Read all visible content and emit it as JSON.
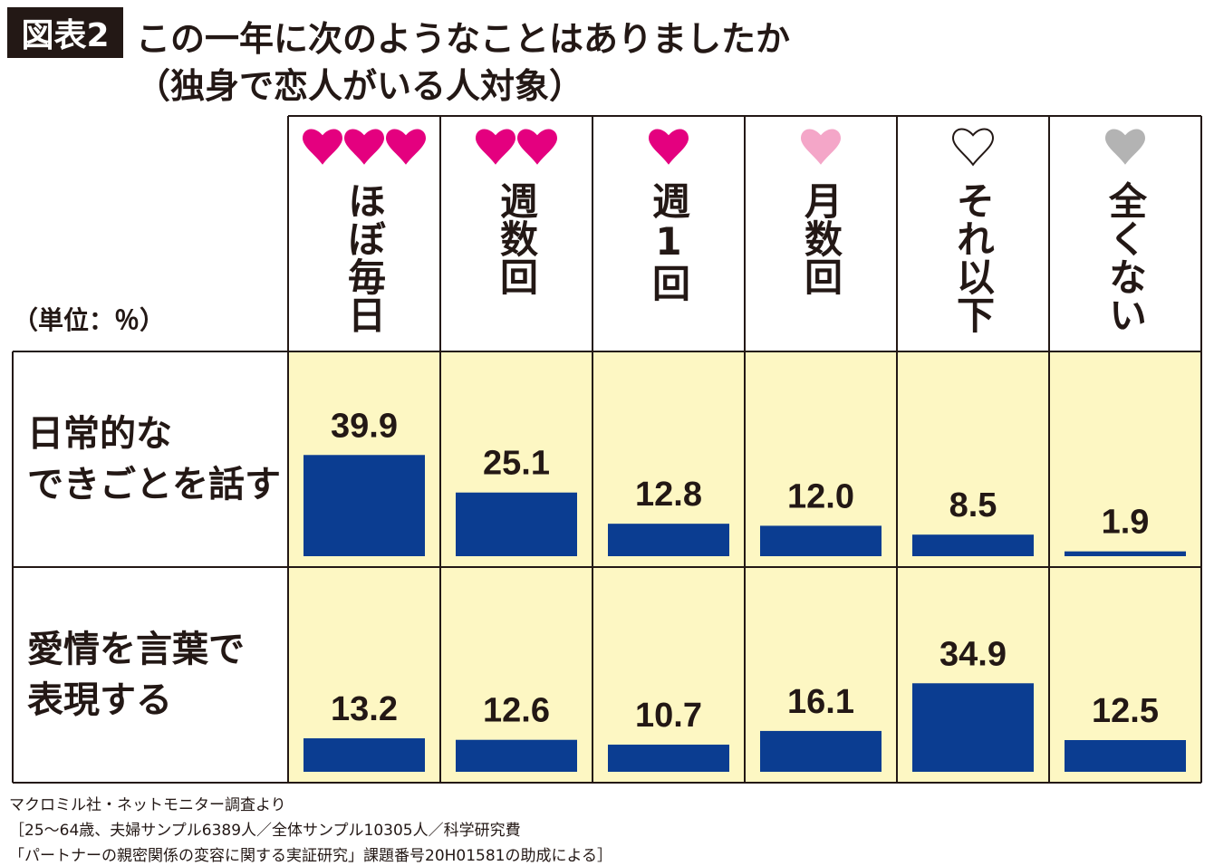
{
  "figure_label": "図表2",
  "title_line1": "この一年に次のようなことはありましたか",
  "title_line2": "（独身で恋人がいる人対象）",
  "unit_label": "（単位：％）",
  "colors": {
    "bar": "#0b3d91",
    "cell_bg": "#fdf7c3",
    "heart_dark": "#e4007f",
    "heart_light": "#f4a6c8",
    "heart_gray": "#b3b3b3",
    "border": "#231815"
  },
  "chart_data": {
    "type": "bar",
    "categories": [
      {
        "label": "ほぼ毎日",
        "hearts": 3,
        "heart_style": "heart_dark"
      },
      {
        "label": "週数回",
        "hearts": 2,
        "heart_style": "heart_dark"
      },
      {
        "label": "週1回",
        "hearts": 1,
        "heart_style": "heart_dark"
      },
      {
        "label": "月数回",
        "hearts": 1,
        "heart_style": "heart_light"
      },
      {
        "label": "それ以下",
        "hearts": 1,
        "heart_style": "outline"
      },
      {
        "label": "全くない",
        "hearts": 1,
        "heart_style": "heart_gray"
      }
    ],
    "series": [
      {
        "row_label_lines": [
          "日常的な",
          "できごとを話す"
        ],
        "values": [
          39.9,
          25.1,
          12.8,
          12.0,
          8.5,
          1.9
        ]
      },
      {
        "row_label_lines": [
          "愛情を言葉で",
          "表現する"
        ],
        "values": [
          13.2,
          12.6,
          10.7,
          16.1,
          34.9,
          12.5
        ]
      }
    ],
    "ylim": [
      0,
      40
    ]
  },
  "footer": [
    "マクロミル社・ネットモニター調査より",
    "［25〜64歳、夫婦サンプル6389人／全体サンプル10305人／科学研究費",
    "「パートナーの親密関係の変容に関する実証研究」課題番号20H01581の助成による］"
  ]
}
